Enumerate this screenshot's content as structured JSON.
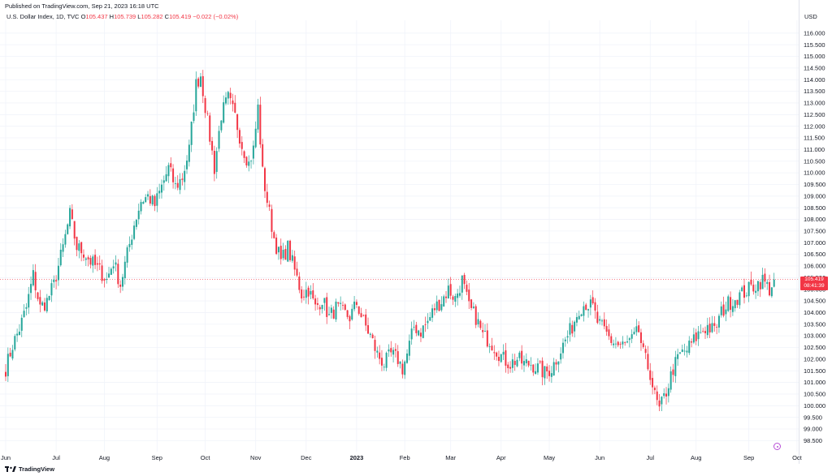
{
  "header": {
    "published": "Published on TradingView.com, Sep 21, 2023 16:18 UTC",
    "symbol": "U.S. Dollar Index, 1D, TVC",
    "o_label": "O",
    "o_value": "105.437",
    "h_label": "H",
    "h_value": "105.739",
    "l_label": "L",
    "l_value": "105.282",
    "c_label": "C",
    "c_value": "105.419",
    "change": "−0.022 (−0.02%)"
  },
  "currency": "USD",
  "price_tag": {
    "price": "105.419",
    "countdown": "08:41:39"
  },
  "footer": {
    "brand": "TradingView"
  },
  "colors": {
    "up": "#26a69a",
    "down": "#f23645",
    "grid": "#f0f3fa",
    "price_line": "#f23645"
  },
  "chart_data": {
    "type": "candlestick",
    "y_axis_position": "right",
    "ylim": [
      98.2,
      116.55
    ],
    "y_ticks": [
      "98.500",
      "99.000",
      "99.500",
      "100.000",
      "100.500",
      "101.000",
      "101.500",
      "102.000",
      "102.500",
      "103.000",
      "103.500",
      "104.000",
      "104.500",
      "105.000",
      "105.500",
      "106.000",
      "106.500",
      "107.000",
      "107.500",
      "108.000",
      "108.500",
      "109.000",
      "109.500",
      "110.000",
      "110.500",
      "111.000",
      "111.500",
      "112.000",
      "112.500",
      "113.000",
      "113.500",
      "114.000",
      "114.500",
      "115.000",
      "115.500",
      "116.000"
    ],
    "x_ticks": [
      {
        "label": "Jun",
        "idx": 0,
        "bold": false
      },
      {
        "label": "Jul",
        "idx": 22,
        "bold": false
      },
      {
        "label": "Aug",
        "idx": 43,
        "bold": false
      },
      {
        "label": "Sep",
        "idx": 66,
        "bold": false
      },
      {
        "label": "Oct",
        "idx": 87,
        "bold": false
      },
      {
        "label": "Nov",
        "idx": 109,
        "bold": false
      },
      {
        "label": "Dec",
        "idx": 131,
        "bold": false
      },
      {
        "label": "2023",
        "idx": 153,
        "bold": true
      },
      {
        "label": "Feb",
        "idx": 174,
        "bold": false
      },
      {
        "label": "Mar",
        "idx": 194,
        "bold": false
      },
      {
        "label": "Apr",
        "idx": 216,
        "bold": false
      },
      {
        "label": "May",
        "idx": 237,
        "bold": false
      },
      {
        "label": "Jun",
        "idx": 259,
        "bold": false
      },
      {
        "label": "Jul",
        "idx": 281,
        "bold": false
      },
      {
        "label": "Aug",
        "idx": 301,
        "bold": false
      },
      {
        "label": "Sep",
        "idx": 324,
        "bold": false
      },
      {
        "label": "Oct",
        "idx": 345,
        "bold": false
      }
    ],
    "last_price": 105.419,
    "key_closes": [
      [
        0,
        101.6
      ],
      [
        3,
        102.6
      ],
      [
        6,
        103.3
      ],
      [
        9,
        104.2
      ],
      [
        12,
        105.6
      ],
      [
        15,
        104.2
      ],
      [
        18,
        104.5
      ],
      [
        21,
        105.2
      ],
      [
        25,
        106.8
      ],
      [
        28,
        108.2
      ],
      [
        31,
        106.8
      ],
      [
        34,
        106.6
      ],
      [
        37,
        106.2
      ],
      [
        41,
        105.8
      ],
      [
        44,
        105.4
      ],
      [
        47,
        106.2
      ],
      [
        50,
        105.2
      ],
      [
        53,
        106.5
      ],
      [
        56,
        107.8
      ],
      [
        59,
        108.8
      ],
      [
        62,
        109.0
      ],
      [
        65,
        108.6
      ],
      [
        68,
        109.4
      ],
      [
        71,
        110.2
      ],
      [
        74,
        109.4
      ],
      [
        77,
        109.8
      ],
      [
        80,
        111.0
      ],
      [
        83,
        113.8
      ],
      [
        85,
        114.2
      ],
      [
        88,
        112.2
      ],
      [
        91,
        110.2
      ],
      [
        94,
        112.5
      ],
      [
        97,
        113.2
      ],
      [
        100,
        112.4
      ],
      [
        103,
        111.2
      ],
      [
        106,
        110.4
      ],
      [
        108,
        111.0
      ],
      [
        110,
        112.8
      ],
      [
        112,
        110.0
      ],
      [
        114,
        108.8
      ],
      [
        117,
        107.2
      ],
      [
        120,
        106.2
      ],
      [
        123,
        106.8
      ],
      [
        126,
        105.8
      ],
      [
        129,
        104.8
      ],
      [
        132,
        105.0
      ],
      [
        135,
        104.2
      ],
      [
        138,
        104.6
      ],
      [
        141,
        103.8
      ],
      [
        144,
        104.2
      ],
      [
        147,
        104.0
      ],
      [
        150,
        103.8
      ],
      [
        153,
        104.4
      ],
      [
        156,
        103.6
      ],
      [
        159,
        103.0
      ],
      [
        162,
        102.2
      ],
      [
        165,
        101.8
      ],
      [
        168,
        102.2
      ],
      [
        171,
        102.0
      ],
      [
        173,
        101.6
      ],
      [
        175,
        102.2
      ],
      [
        178,
        103.4
      ],
      [
        181,
        103.2
      ],
      [
        184,
        103.6
      ],
      [
        187,
        104.2
      ],
      [
        190,
        104.5
      ],
      [
        193,
        105.0
      ],
      [
        196,
        104.6
      ],
      [
        199,
        105.4
      ],
      [
        202,
        104.2
      ],
      [
        205,
        103.8
      ],
      [
        208,
        103.0
      ],
      [
        211,
        102.8
      ],
      [
        214,
        102.4
      ],
      [
        217,
        102.0
      ],
      [
        220,
        101.8
      ],
      [
        223,
        102.0
      ],
      [
        226,
        101.8
      ],
      [
        229,
        101.8
      ],
      [
        232,
        101.6
      ],
      [
        235,
        101.4
      ],
      [
        238,
        101.6
      ],
      [
        241,
        102.2
      ],
      [
        244,
        102.8
      ],
      [
        247,
        103.4
      ],
      [
        250,
        104.2
      ],
      [
        253,
        104.4
      ],
      [
        256,
        104.2
      ],
      [
        258,
        103.6
      ],
      [
        261,
        103.2
      ],
      [
        264,
        102.8
      ],
      [
        267,
        102.6
      ],
      [
        270,
        102.6
      ],
      [
        273,
        102.8
      ],
      [
        276,
        103.2
      ],
      [
        278,
        102.2
      ],
      [
        281,
        101.4
      ],
      [
        283,
        100.4
      ],
      [
        285,
        99.8
      ],
      [
        288,
        100.6
      ],
      [
        291,
        101.6
      ],
      [
        294,
        102.2
      ],
      [
        297,
        102.4
      ],
      [
        300,
        102.8
      ],
      [
        303,
        103.2
      ],
      [
        306,
        103.4
      ],
      [
        309,
        103.2
      ],
      [
        312,
        104.0
      ],
      [
        315,
        104.4
      ],
      [
        318,
        104.6
      ],
      [
        321,
        104.8
      ],
      [
        324,
        105.0
      ],
      [
        327,
        105.2
      ],
      [
        330,
        105.4
      ],
      [
        333,
        105.0
      ],
      [
        335,
        105.4
      ]
    ]
  }
}
